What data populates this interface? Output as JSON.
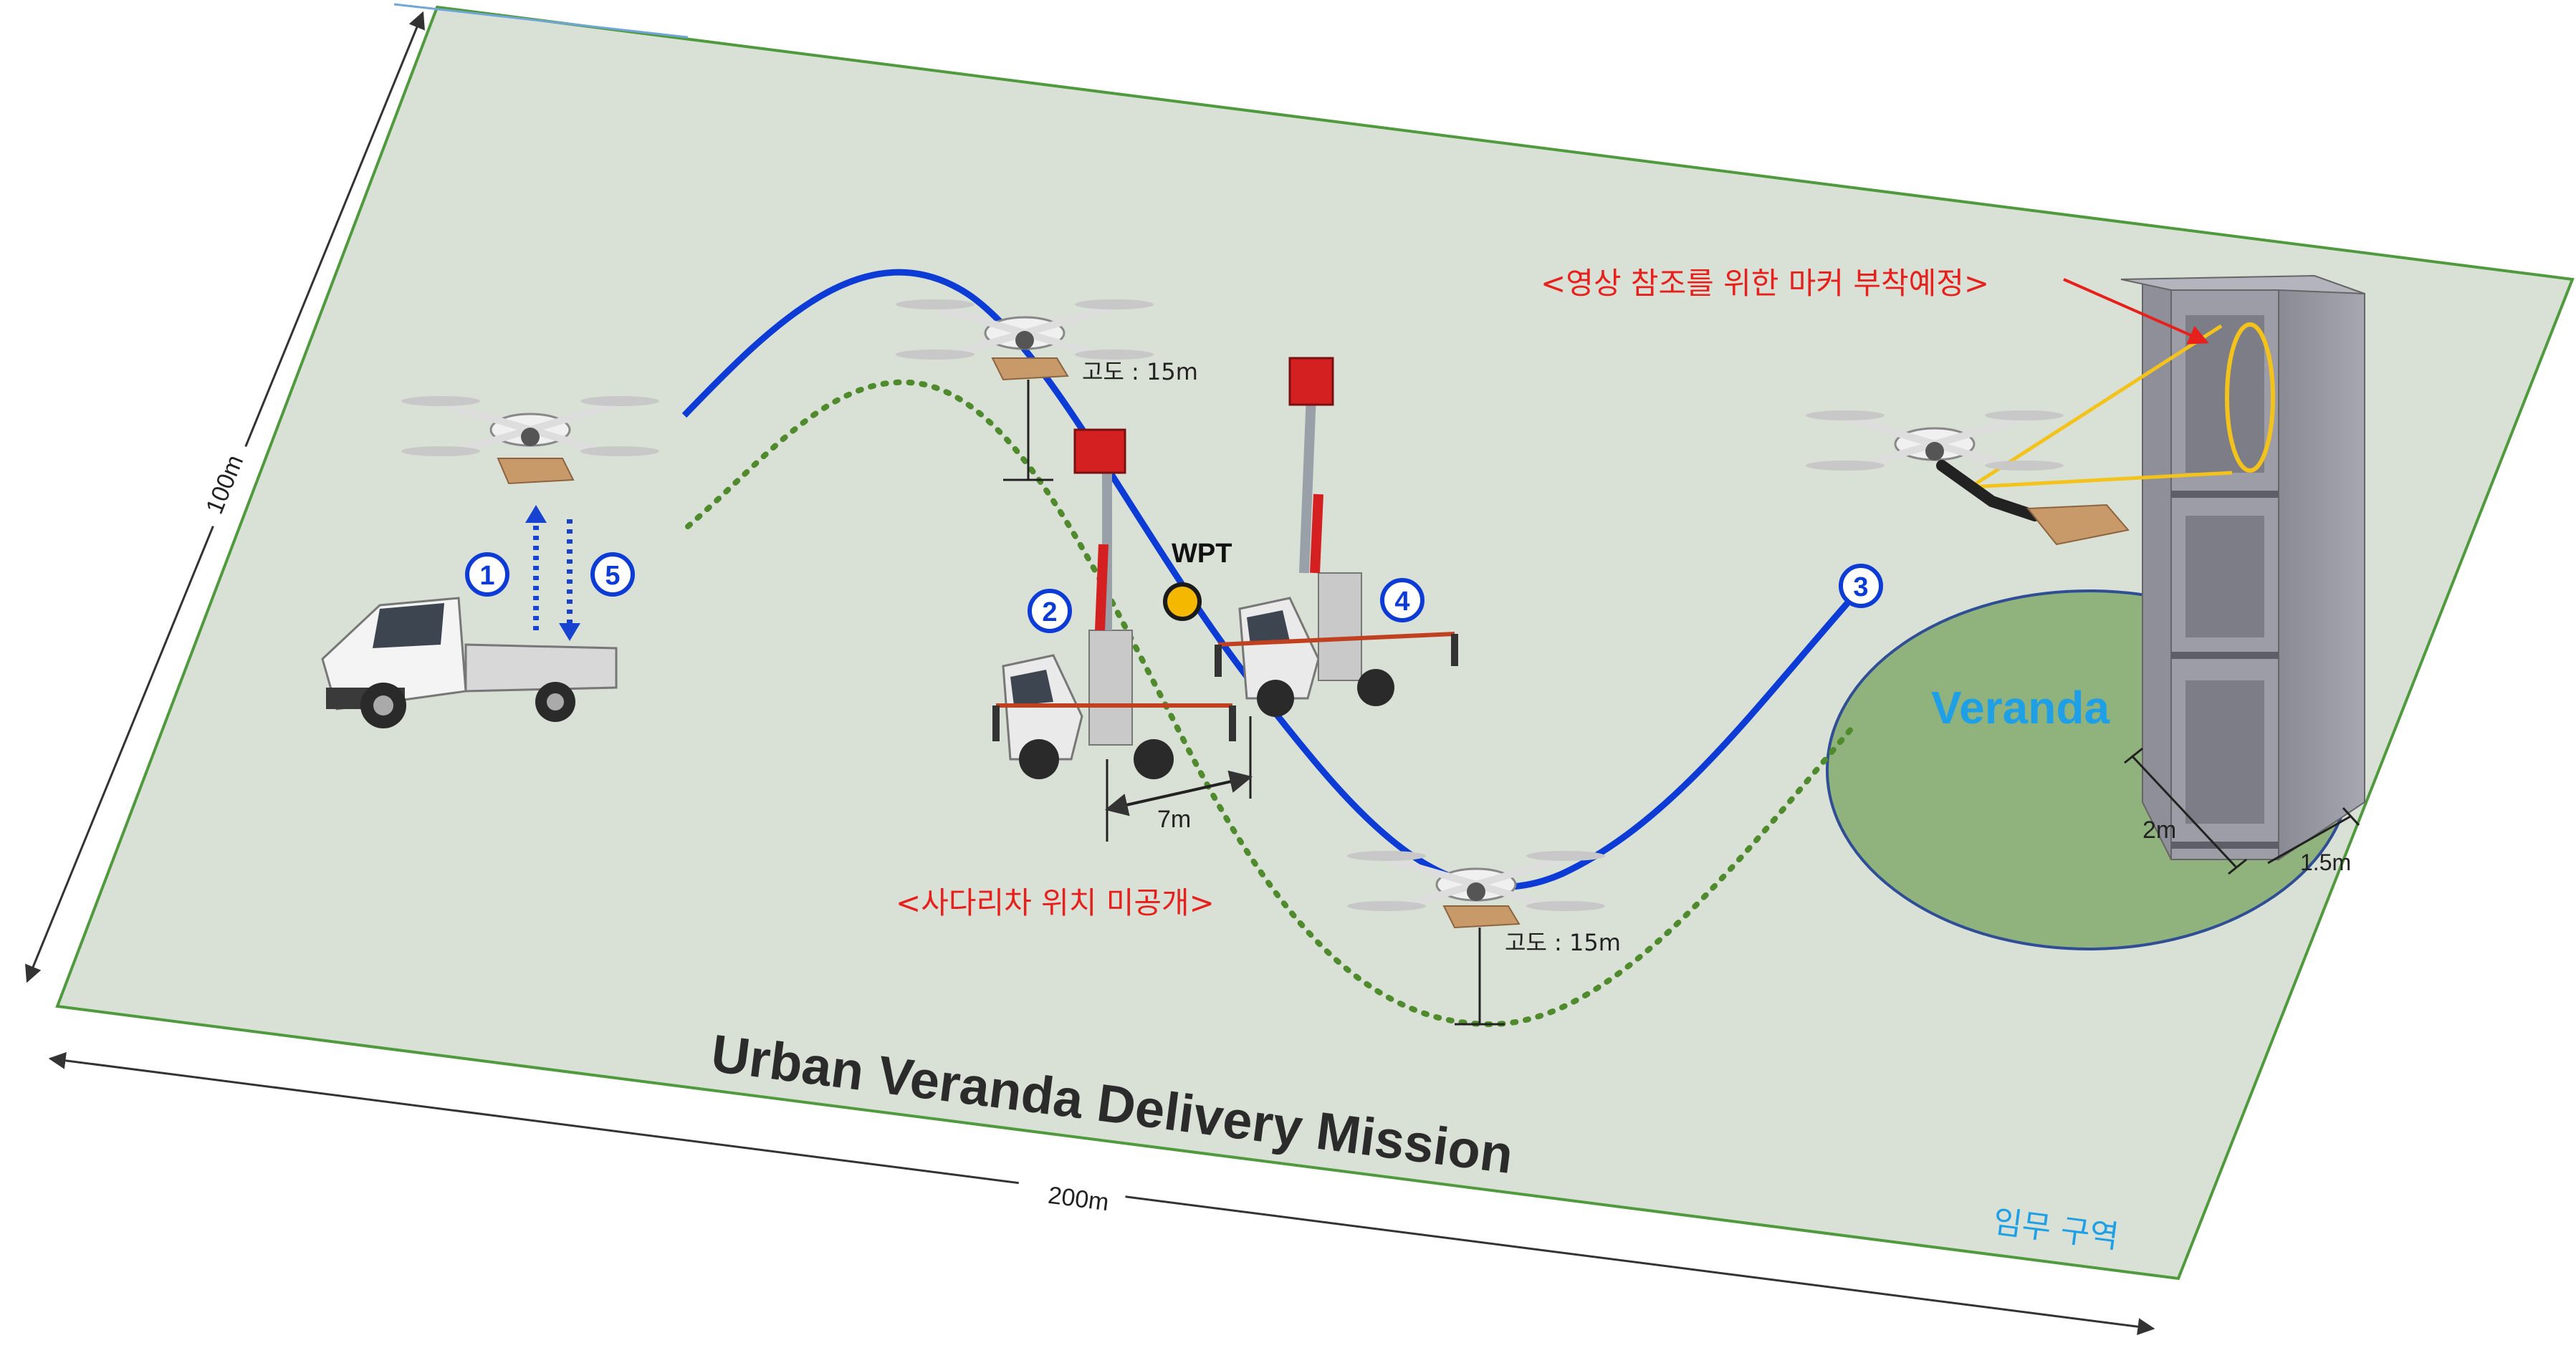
{
  "title": "Urban Veranda Delivery Mission",
  "zone_label": "임무 구역",
  "dimensions": {
    "width": "200m",
    "height": "100m"
  },
  "veranda_label": "Veranda",
  "veranda_dims": {
    "depth": "2m",
    "width": "1.5m"
  },
  "wpt_label": "WPT",
  "altitude_labels": [
    "고도 : 15m",
    "고도 : 15m"
  ],
  "ladder_gap": "7m",
  "notes": {
    "ladder_position": "<사다리차 위치 미공개>",
    "marker_note": "<영상 참조를 위한 마커 부착예정>"
  },
  "steps": [
    "1",
    "2",
    "3",
    "4",
    "5"
  ],
  "colors": {
    "ground": "#d9e0d5",
    "ground_edge": "#4e9a3c",
    "path_blue": "#0c3bd6",
    "path_green": "#4f8a2c",
    "veranda_fill": "#90b27c",
    "veranda_edge": "#2f4e95",
    "veranda_text": "#1fa0e6",
    "note_red": "#e8201c",
    "wpt_fill": "#f5b800",
    "marker_yellow": "#f3c21b"
  }
}
